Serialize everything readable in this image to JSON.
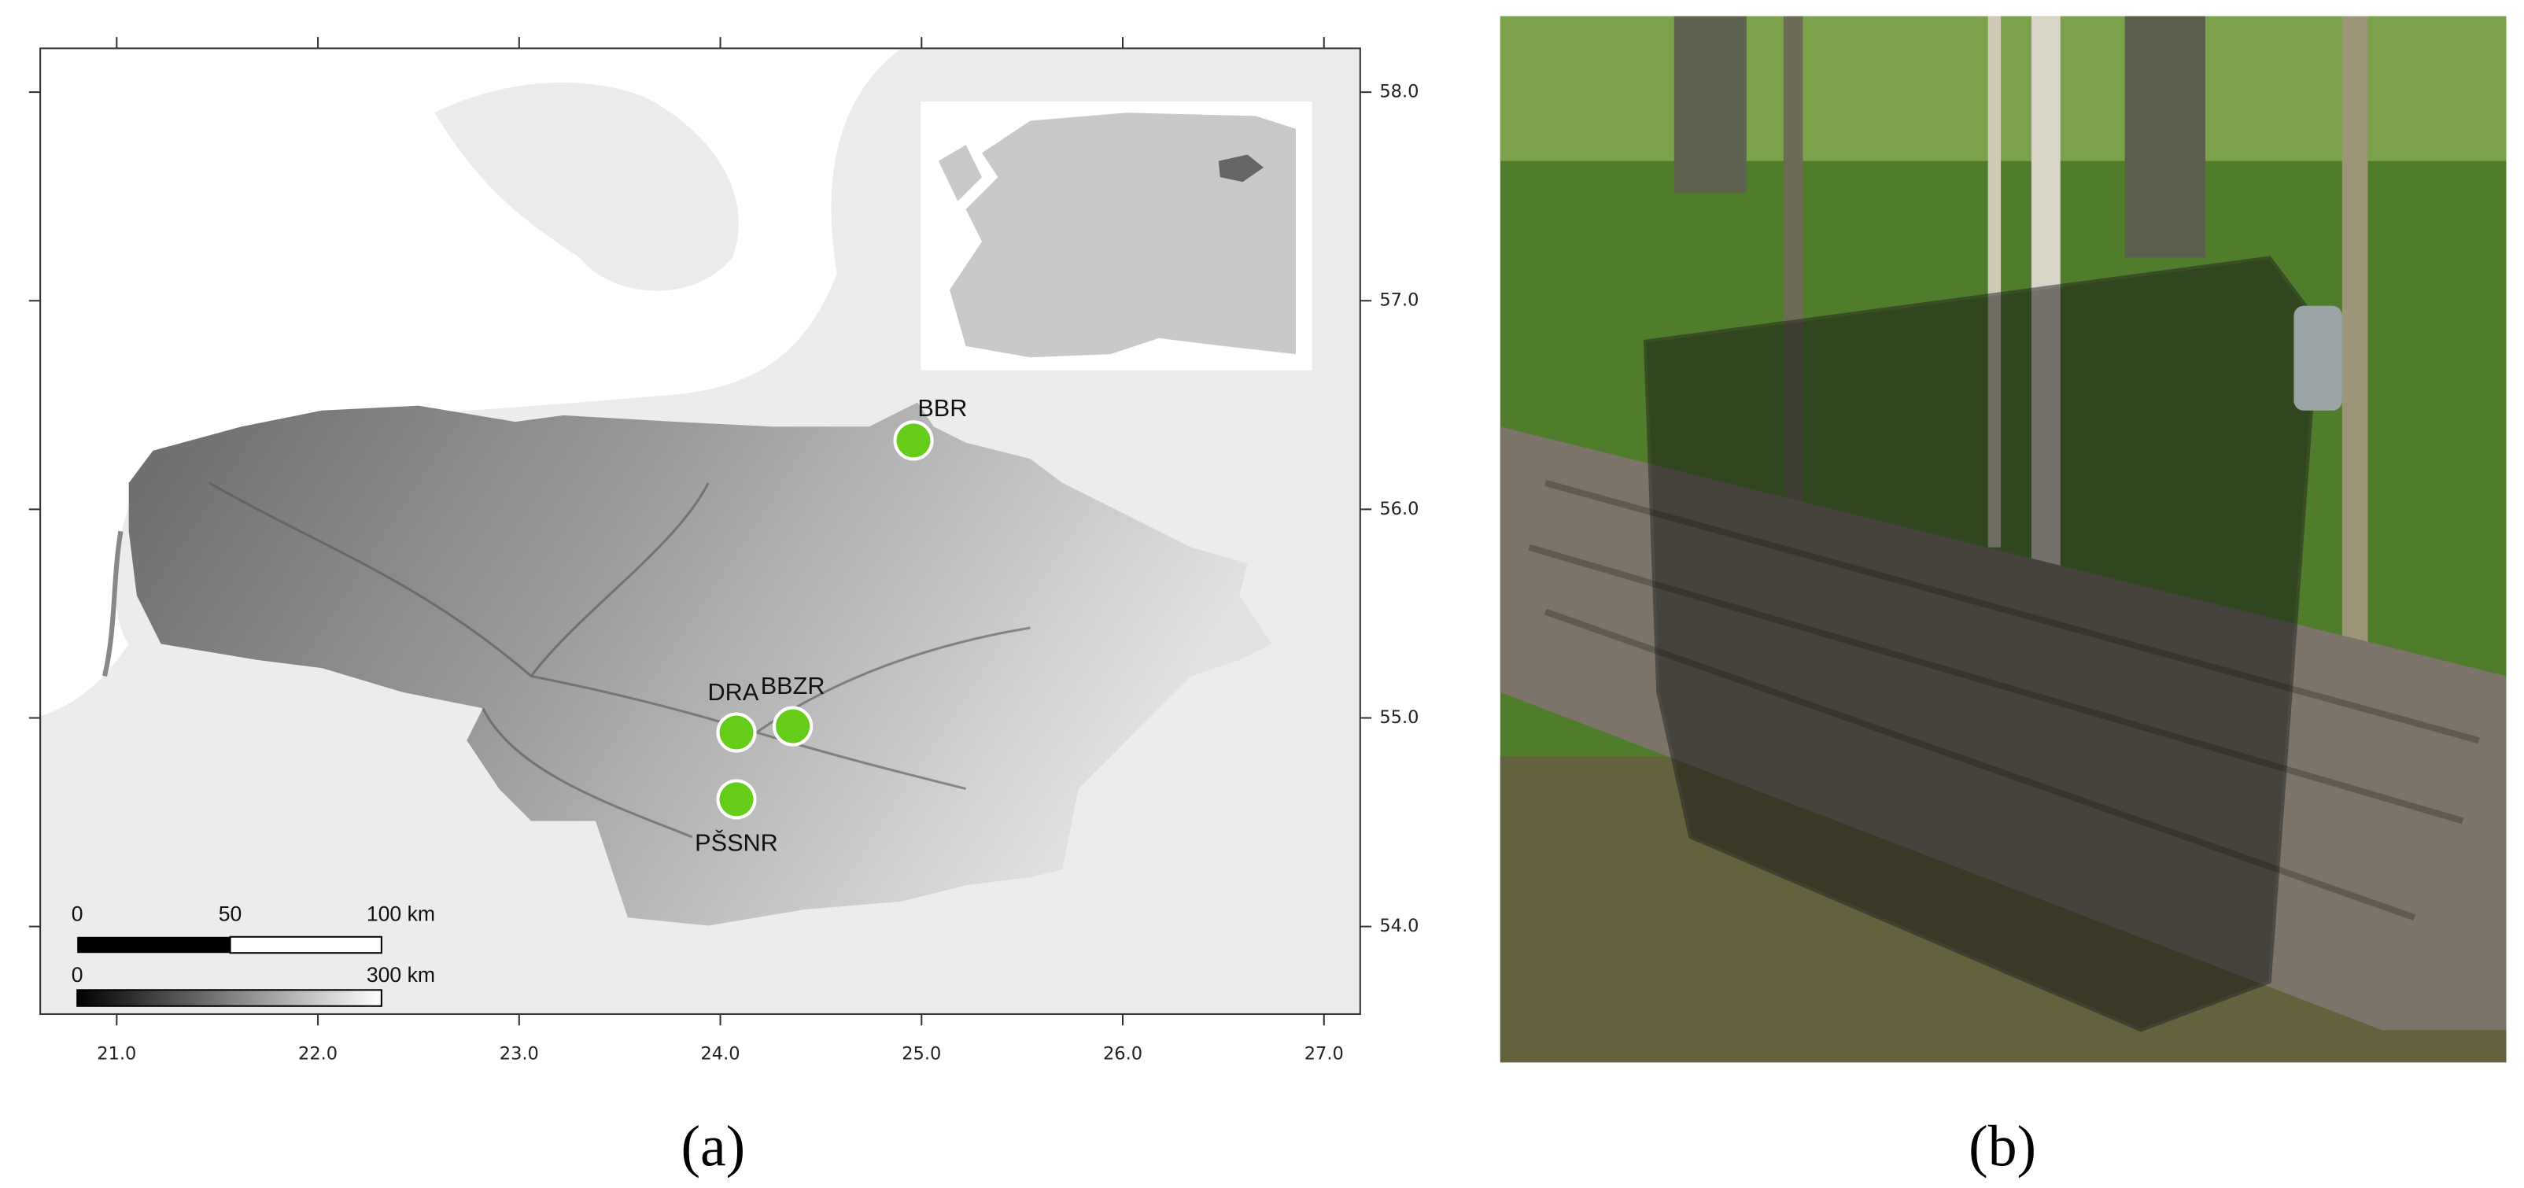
{
  "chart_data": {
    "type": "map",
    "xlim": [
      20.62,
      27.18
    ],
    "ylim": [
      53.58,
      58.21
    ],
    "xticks": [
      {
        "value": 21,
        "label": "21.0"
      },
      {
        "value": 22,
        "label": "22.0"
      },
      {
        "value": 23,
        "label": "23.0"
      },
      {
        "value": 24,
        "label": "24.0"
      },
      {
        "value": 25,
        "label": "25.0"
      },
      {
        "value": 26,
        "label": "26.0"
      },
      {
        "value": 27,
        "label": "27.0"
      }
    ],
    "yticks": [
      {
        "value": 54,
        "label": "54.0"
      },
      {
        "value": 55,
        "label": "55.0"
      },
      {
        "value": 56,
        "label": "56.0"
      },
      {
        "value": 57,
        "label": "57.0"
      },
      {
        "value": 58,
        "label": "58.0"
      }
    ],
    "sites": {
      "color": "#66cc1a",
      "names": [
        "BBR",
        "DRA",
        "BBZR",
        "PŠSNR"
      ],
      "lon": [
        24.96,
        24.08,
        24.36,
        24.08
      ],
      "lat": [
        56.33,
        54.93,
        54.96,
        54.61
      ]
    },
    "scale_bars": [
      {
        "labels": [
          "0",
          "50",
          "100 km"
        ]
      },
      {
        "labels": [
          "0",
          "300 km"
        ]
      }
    ]
  },
  "panels": [
    "(a)",
    "(b)"
  ]
}
